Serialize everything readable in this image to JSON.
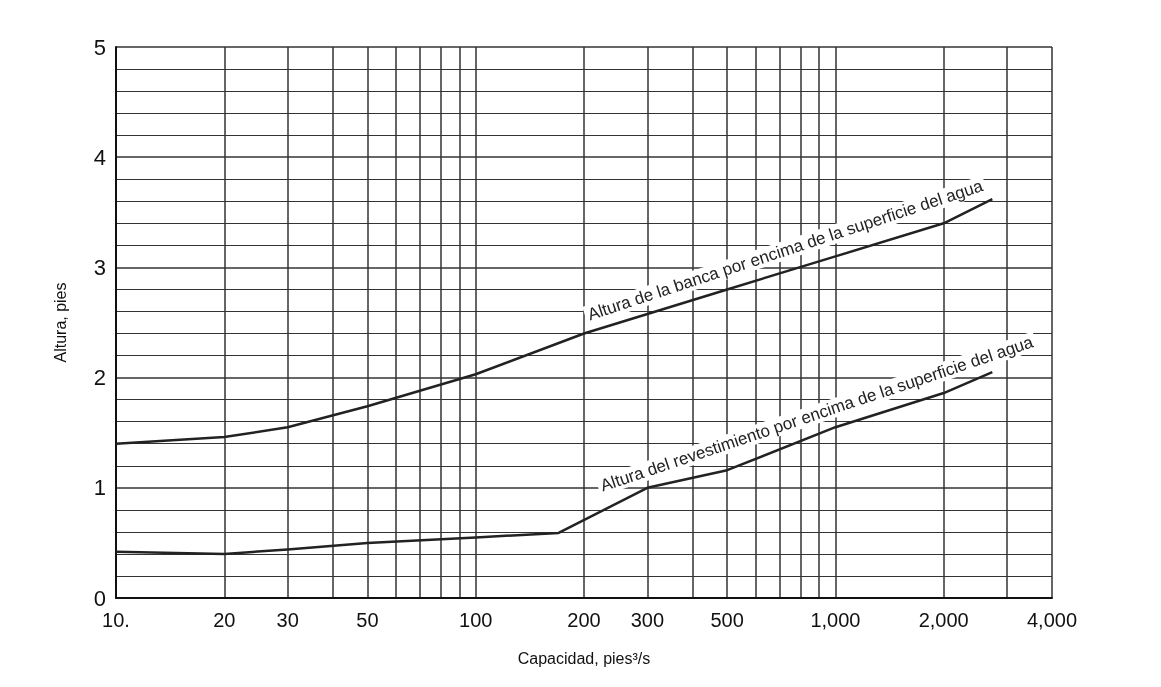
{
  "chart_data": {
    "type": "line",
    "xlabel": "Capacidad, pies³/s",
    "ylabel": "Altura, pies",
    "log": "x",
    "grid": true,
    "legend": false,
    "marker": "none",
    "xlim": [
      10,
      4000
    ],
    "ylim": [
      0,
      5
    ],
    "xticks": [
      {
        "value": 10,
        "label": "10."
      },
      20,
      30,
      {
        "value": 40,
        "label": null
      },
      50,
      {
        "value": 60,
        "label": null
      },
      {
        "value": 70,
        "label": null
      },
      {
        "value": 80,
        "label": null
      },
      {
        "value": 90,
        "label": null
      },
      100,
      200,
      300,
      {
        "value": 400,
        "label": null
      },
      500,
      {
        "value": 600,
        "label": null
      },
      {
        "value": 700,
        "label": null
      },
      {
        "value": 800,
        "label": null
      },
      {
        "value": 900,
        "label": null
      },
      {
        "value": 1000,
        "label": "1,000"
      },
      {
        "value": 2000,
        "label": "2,000"
      },
      {
        "value": 3000,
        "label": null
      },
      {
        "value": 4000,
        "label": "4,000"
      }
    ],
    "yticks": [
      0,
      1,
      2,
      3,
      4,
      5
    ],
    "series": [
      {
        "name": "Altura de la banca por encima de la superficie del agua",
        "color": "#222222",
        "x": [
          10,
          20,
          30,
          50,
          100,
          200,
          500,
          1000,
          2000,
          2730
        ],
        "values": [
          1.4,
          1.46,
          1.55,
          1.74,
          2.03,
          2.4,
          2.8,
          3.1,
          3.4,
          3.62
        ]
      },
      {
        "name": "Altura del revestimiento por encima de la superficie del agua",
        "color": "#222222",
        "x": [
          10,
          20,
          30,
          50,
          100,
          170,
          300,
          500,
          1000,
          2000,
          2730
        ],
        "values": [
          0.42,
          0.4,
          0.44,
          0.5,
          0.55,
          0.59,
          1.0,
          1.16,
          1.55,
          1.86,
          2.05
        ]
      }
    ]
  }
}
